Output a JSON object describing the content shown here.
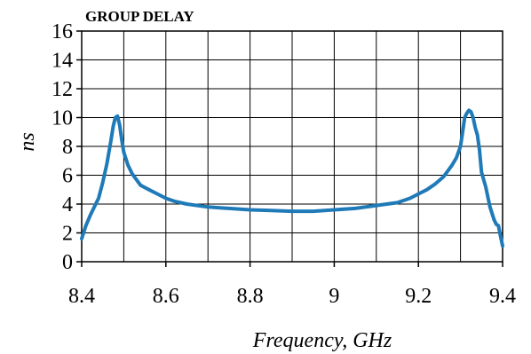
{
  "chart_data": {
    "type": "line",
    "title": "GROUP DELAY",
    "xlabel": "Frequency, GHz",
    "ylabel": "ns",
    "xlim": [
      8.4,
      9.4
    ],
    "ylim": [
      0,
      16
    ],
    "xticks": [
      8.4,
      8.6,
      8.8,
      9.0,
      9.2,
      9.4
    ],
    "xtick_labels": [
      "8.4",
      "8.6",
      "8.8",
      "9",
      "9.2",
      "9.4"
    ],
    "yticks": [
      0,
      2,
      4,
      6,
      8,
      10,
      12,
      14,
      16
    ],
    "ytick_labels": [
      "0",
      "2",
      "4",
      "6",
      "8",
      "10",
      "12",
      "14",
      "16"
    ],
    "grid": true,
    "series": [
      {
        "color": "#1f7ab8",
        "x": [
          8.4,
          8.41,
          8.42,
          8.43,
          8.44,
          8.45,
          8.46,
          8.47,
          8.475,
          8.48,
          8.485,
          8.49,
          8.495,
          8.5,
          8.51,
          8.52,
          8.53,
          8.54,
          8.56,
          8.58,
          8.6,
          8.62,
          8.65,
          8.7,
          8.75,
          8.8,
          8.85,
          8.9,
          8.95,
          9.0,
          9.05,
          9.1,
          9.15,
          9.18,
          9.2,
          9.22,
          9.24,
          9.26,
          9.27,
          9.28,
          9.29,
          9.3,
          9.305,
          9.31,
          9.315,
          9.32,
          9.325,
          9.33,
          9.335,
          9.34,
          9.345,
          9.35,
          9.36,
          9.37,
          9.38,
          9.385,
          9.39,
          9.395,
          9.4
        ],
        "y": [
          1.6,
          2.5,
          3.2,
          3.8,
          4.4,
          5.5,
          6.8,
          8.5,
          9.4,
          10.0,
          10.1,
          9.5,
          8.5,
          7.6,
          6.7,
          6.1,
          5.7,
          5.3,
          5.0,
          4.7,
          4.4,
          4.2,
          4.0,
          3.8,
          3.7,
          3.6,
          3.55,
          3.5,
          3.5,
          3.6,
          3.7,
          3.9,
          4.1,
          4.4,
          4.7,
          5.0,
          5.4,
          5.9,
          6.3,
          6.7,
          7.2,
          8.0,
          9.0,
          10.0,
          10.3,
          10.5,
          10.4,
          10.0,
          9.3,
          8.8,
          7.8,
          6.2,
          5.2,
          3.8,
          2.9,
          2.6,
          2.5,
          1.8,
          1.1
        ]
      }
    ]
  }
}
